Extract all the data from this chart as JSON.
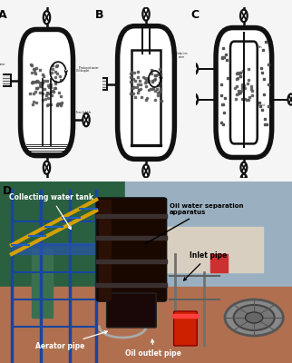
{
  "panel_labels": [
    "A",
    "B",
    "C",
    "D"
  ],
  "panel_label_fontsize": 9,
  "background_color": "#f5f5f5",
  "lc": "#111111",
  "lw": 1.8,
  "dc": "#555555",
  "photo_annotations": [
    "Collecting water tank",
    "Oil water separation\napparatus",
    "Inlet pipe",
    "Aerator pipe",
    "Oil outlet pipe"
  ],
  "photo_ann_fontsize": 5.5,
  "photo_ann_color": "white",
  "photo_ann_color_dark": "black"
}
